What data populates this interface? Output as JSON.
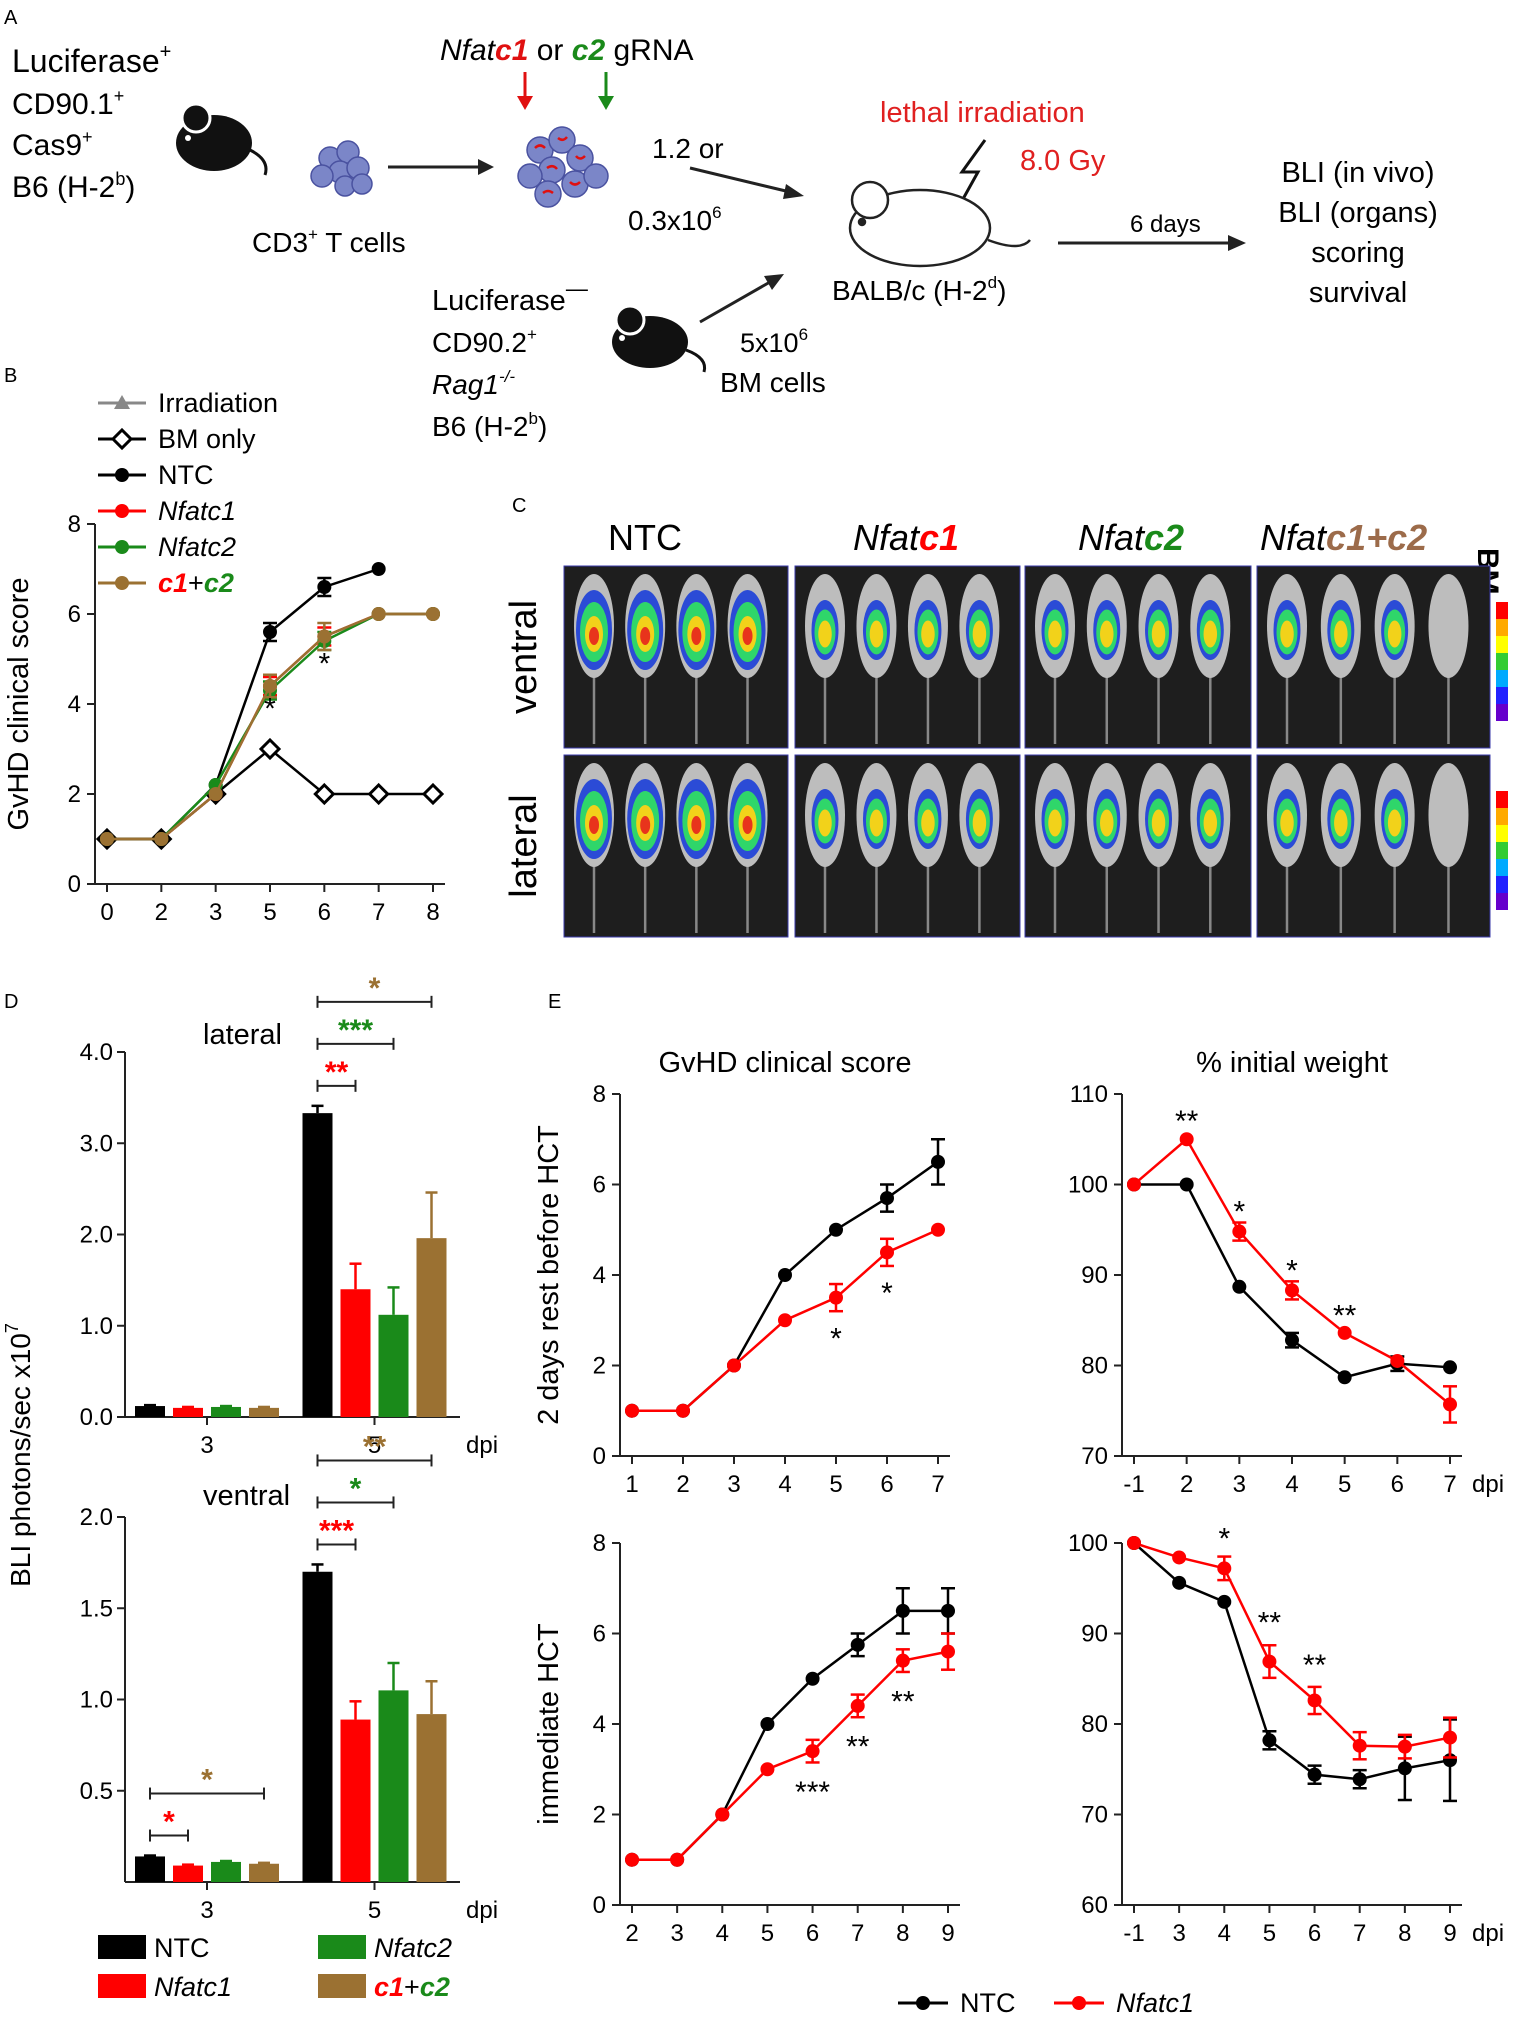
{
  "panel_letters": {
    "A": "A",
    "B": "B",
    "C": "C",
    "D": "D",
    "E": "E"
  },
  "panelA": {
    "donor_luc": "Luciferase",
    "donor_luc_sup": "+",
    "donor_line2": "CD90.1",
    "donor_line2_sup": "+",
    "donor_line3": "Cas9",
    "donor_line3_sup": "+",
    "donor_line4_a": "B6 (H-2",
    "donor_line4_sup": "b",
    "donor_line4_b": ")",
    "tcells_label": "CD3",
    "tcells_sup": "+",
    "tcells_label2": " T cells",
    "grna_a": "Nfat",
    "grna_b": "c1",
    "grna_c": " or ",
    "grna_d": "c2",
    "grna_e": " gRNA",
    "dose1": "1.2  or",
    "dose2": "0.3x10",
    "dose2_sup": "6",
    "irradiation": "lethal irradiation",
    "gy": "8.0 Gy",
    "host_a": "BALB/c (H-2",
    "host_sup": "d",
    "host_b": ")",
    "days": "6 days",
    "out1": "BLI (in vivo)",
    "out2": "BLI (organs)",
    "out3": "scoring",
    "out4": "survival",
    "bm_luc": "Luciferase",
    "bm_luc_sup": "—",
    "bm_line2": "CD90.2",
    "bm_line2_sup": "+",
    "bm_line3": "Rag1",
    "bm_line3_sup": "-/-",
    "bm_line4_a": "B6 (H-2",
    "bm_line4_sup": "b",
    "bm_line4_b": ")",
    "bm_dose": "5x10",
    "bm_dose_sup": "6",
    "bm_cells": "BM cells"
  },
  "panelC": {
    "group_headers": [
      "NTC",
      "Nfatc1",
      "Nfatc2",
      "Nfatc1+c2"
    ],
    "group_header_parts": [
      [
        "NTC",
        ""
      ],
      [
        "Nfat",
        "c1"
      ],
      [
        "Nfat",
        "c2"
      ],
      [
        "Nfat",
        "c1+c2"
      ]
    ],
    "bm_label": "BM",
    "row_labels": [
      "ventral",
      "lateral"
    ]
  },
  "colors": {
    "NTC": "#000000",
    "Nfatc1": "#ff0000",
    "Nfatc2": "#1a8a1a",
    "c1c2": "#9b7132",
    "BM": "#000000",
    "Irradiation": "#888888",
    "luciferase": "#d4a017",
    "irradiation_text": "#e02020"
  },
  "chart_data": [
    {
      "id": "B",
      "type": "line",
      "ylabel": "GvHD clinical score",
      "xlabel": "",
      "x": [
        0,
        2,
        3,
        5,
        6,
        7,
        8
      ],
      "ylim": [
        0,
        8
      ],
      "yticks": [
        0,
        2,
        4,
        6,
        8
      ],
      "legend": [
        "Irradiation",
        "BM only",
        "NTC",
        "Nfatc1",
        "Nfatc2",
        "c1+c2"
      ],
      "series": [
        {
          "name": "BM only",
          "x": [
            0,
            2,
            3,
            5,
            6,
            7,
            8
          ],
          "values": [
            1,
            1,
            2,
            3,
            2,
            2,
            2
          ],
          "err": [
            0,
            0,
            0,
            0,
            0,
            0,
            0
          ]
        },
        {
          "name": "NTC",
          "x": [
            0,
            2,
            3,
            5,
            6,
            7
          ],
          "values": [
            1,
            1,
            2.2,
            5.6,
            6.6,
            7
          ],
          "err": [
            0,
            0,
            0,
            0.2,
            0.2,
            0
          ]
        },
        {
          "name": "Nfatc1",
          "x": [
            0,
            2,
            3,
            5,
            6,
            7,
            8
          ],
          "values": [
            1,
            1,
            2,
            4.4,
            5.5,
            6,
            6
          ],
          "err": [
            0,
            0,
            0,
            0.2,
            0.2,
            0,
            0
          ]
        },
        {
          "name": "Nfatc2",
          "x": [
            0,
            2,
            3,
            5,
            6,
            7,
            8
          ],
          "values": [
            1,
            1,
            2.2,
            4.3,
            5.4,
            6,
            6
          ],
          "err": [
            0,
            0,
            0,
            0.2,
            0.2,
            0,
            0
          ]
        },
        {
          "name": "c1+c2",
          "x": [
            0,
            2,
            3,
            5,
            6,
            7,
            8
          ],
          "values": [
            1,
            1,
            2,
            4.4,
            5.5,
            6,
            6
          ],
          "err": [
            0,
            0,
            0,
            0.25,
            0.3,
            0,
            0
          ]
        }
      ],
      "annotations": [
        {
          "x": 5,
          "y": 3.9,
          "text": "*"
        },
        {
          "x": 6,
          "y": 4.9,
          "text": "*"
        }
      ]
    },
    {
      "id": "D-lateral",
      "type": "bar",
      "title": "lateral",
      "categories": [
        "3",
        "5"
      ],
      "xunit": "dpi",
      "ylim": [
        0,
        4
      ],
      "yticks": [
        "0.0",
        "1.0",
        "2.0",
        "3.0",
        "4.0"
      ],
      "series": [
        {
          "name": "NTC",
          "values": [
            0.12,
            3.33
          ],
          "err": [
            0.01,
            0.08
          ]
        },
        {
          "name": "Nfatc1",
          "values": [
            0.1,
            1.4
          ],
          "err": [
            0.01,
            0.28
          ]
        },
        {
          "name": "Nfatc2",
          "values": [
            0.11,
            1.12
          ],
          "err": [
            0.01,
            0.3
          ]
        },
        {
          "name": "c1+c2",
          "values": [
            0.1,
            1.96
          ],
          "err": [
            0.01,
            0.5
          ]
        }
      ],
      "significance": [
        {
          "group": 1,
          "from": 0,
          "to": 1,
          "text": "**",
          "color": "Nfatc1"
        },
        {
          "group": 1,
          "from": 0,
          "to": 2,
          "text": "***",
          "color": "Nfatc2"
        },
        {
          "group": 1,
          "from": 0,
          "to": 3,
          "text": "*",
          "color": "c1c2"
        }
      ]
    },
    {
      "id": "D-ventral",
      "type": "bar",
      "title": "ventral",
      "categories": [
        "3",
        "5"
      ],
      "xunit": "dpi",
      "ylim": [
        0,
        2
      ],
      "yticks": [
        "0.5",
        "1.0",
        "1.5",
        "2.0"
      ],
      "ylabel": "BLI photons/sec x10",
      "ylabel_sup": "7",
      "series": [
        {
          "name": "NTC",
          "values": [
            0.14,
            1.7
          ],
          "err": [
            0.005,
            0.04
          ]
        },
        {
          "name": "Nfatc1",
          "values": [
            0.09,
            0.89
          ],
          "err": [
            0.005,
            0.1
          ]
        },
        {
          "name": "Nfatc2",
          "values": [
            0.11,
            1.05
          ],
          "err": [
            0.005,
            0.15
          ]
        },
        {
          "name": "c1+c2",
          "values": [
            0.1,
            0.92
          ],
          "err": [
            0.005,
            0.18
          ]
        }
      ],
      "significance": [
        {
          "group": 0,
          "from": 0,
          "to": 1,
          "text": "*",
          "color": "Nfatc1"
        },
        {
          "group": 0,
          "from": 0,
          "to": 3,
          "text": "*",
          "color": "c1c2"
        },
        {
          "group": 1,
          "from": 0,
          "to": 1,
          "text": "***",
          "color": "Nfatc1"
        },
        {
          "group": 1,
          "from": 0,
          "to": 2,
          "text": "*",
          "color": "Nfatc2"
        },
        {
          "group": 1,
          "from": 0,
          "to": 3,
          "text": "**",
          "color": "c1c2"
        }
      ],
      "legend": [
        "NTC",
        "Nfatc2",
        "Nfatc1",
        "c1+c2"
      ]
    },
    {
      "id": "E-top-left",
      "type": "line",
      "title": "GvHD clinical score",
      "ylabel": "2 days rest before HCT",
      "x": [
        1,
        2,
        3,
        4,
        5,
        6,
        7
      ],
      "ylim": [
        0,
        8
      ],
      "yticks": [
        0,
        2,
        4,
        6,
        8
      ],
      "series": [
        {
          "name": "NTC",
          "x": [
            1,
            2,
            3,
            4,
            5,
            6,
            7
          ],
          "values": [
            1,
            1,
            2,
            4,
            5,
            5.7,
            6.5
          ],
          "err": [
            0,
            0,
            0,
            0,
            0,
            0.3,
            0.5
          ]
        },
        {
          "name": "Nfatc1",
          "x": [
            1,
            2,
            3,
            4,
            5,
            6,
            7
          ],
          "values": [
            1,
            1,
            2,
            3,
            3.5,
            4.5,
            5
          ],
          "err": [
            0,
            0,
            0,
            0,
            0.3,
            0.3,
            0
          ]
        }
      ],
      "annotations": [
        {
          "x": 5,
          "y": 2.6,
          "text": "*"
        },
        {
          "x": 6,
          "y": 3.6,
          "text": "*"
        }
      ]
    },
    {
      "id": "E-top-right",
      "type": "line",
      "title": "% initial weight",
      "x": [
        -1,
        2,
        3,
        4,
        5,
        6,
        7
      ],
      "xunit": "dpi",
      "ylim": [
        70,
        110
      ],
      "yticks": [
        70,
        80,
        90,
        100,
        110
      ],
      "series": [
        {
          "name": "NTC",
          "x": [
            -1,
            2,
            3,
            4,
            5,
            6,
            7
          ],
          "values": [
            100,
            100,
            88.7,
            82.8,
            78.7,
            80.2,
            79.8
          ],
          "err": [
            0,
            0,
            0,
            0.8,
            0,
            0.8,
            0
          ]
        },
        {
          "name": "Nfatc1",
          "x": [
            -1,
            2,
            3,
            4,
            5,
            6,
            7
          ],
          "values": [
            100,
            105,
            94.8,
            88.3,
            83.6,
            80.5,
            75.7
          ],
          "err": [
            0,
            0,
            1,
            1,
            0,
            0,
            2
          ]
        }
      ],
      "annotations": [
        {
          "x": 2,
          "y": 107,
          "text": "**"
        },
        {
          "x": 3,
          "y": 97,
          "text": "*"
        },
        {
          "x": 4,
          "y": 90.5,
          "text": "*"
        },
        {
          "x": 5,
          "y": 85.5,
          "text": "**"
        }
      ]
    },
    {
      "id": "E-bottom-left",
      "type": "line",
      "ylabel": "immediate HCT",
      "x": [
        2,
        3,
        4,
        5,
        6,
        7,
        8,
        9
      ],
      "ylim": [
        0,
        8
      ],
      "yticks": [
        0,
        2,
        4,
        6,
        8
      ],
      "series": [
        {
          "name": "NTC",
          "x": [
            2,
            3,
            4,
            5,
            6,
            7,
            8,
            9
          ],
          "values": [
            1,
            1,
            2,
            4,
            5,
            5.75,
            6.5,
            6.5
          ],
          "err": [
            0,
            0,
            0,
            0,
            0,
            0.25,
            0.5,
            0.5
          ]
        },
        {
          "name": "Nfatc1",
          "x": [
            2,
            3,
            4,
            5,
            6,
            7,
            8,
            9
          ],
          "values": [
            1,
            1,
            2,
            3,
            3.4,
            4.4,
            5.4,
            5.6
          ],
          "err": [
            0,
            0,
            0,
            0,
            0.25,
            0.25,
            0.25,
            0.4
          ]
        }
      ],
      "annotations": [
        {
          "x": 6,
          "y": 2.5,
          "text": "***"
        },
        {
          "x": 7,
          "y": 3.5,
          "text": "**"
        },
        {
          "x": 8,
          "y": 4.5,
          "text": "**"
        }
      ]
    },
    {
      "id": "E-bottom-right",
      "type": "line",
      "x": [
        -1,
        3,
        4,
        5,
        6,
        7,
        8,
        9
      ],
      "xunit": "dpi",
      "ylim": [
        60,
        100
      ],
      "yticks": [
        60,
        70,
        80,
        90,
        100
      ],
      "series": [
        {
          "name": "NTC",
          "x": [
            -1,
            3,
            4,
            5,
            6,
            7,
            8,
            9
          ],
          "values": [
            100,
            95.6,
            93.5,
            78.2,
            74.4,
            73.9,
            75.1,
            76
          ],
          "err": [
            0,
            0,
            0,
            1,
            1,
            1,
            3.5,
            4.5
          ]
        },
        {
          "name": "Nfatc1",
          "x": [
            -1,
            3,
            4,
            5,
            6,
            7,
            8,
            9
          ],
          "values": [
            100,
            98.4,
            97.2,
            86.9,
            82.6,
            77.6,
            77.5,
            78.5
          ],
          "err": [
            0,
            0,
            1.3,
            1.8,
            1.5,
            1.5,
            1.3,
            2.2
          ]
        }
      ],
      "annotations": [
        {
          "x": 4,
          "y": 100.5,
          "text": "*"
        },
        {
          "x": 5,
          "y": 91.2,
          "text": "**"
        },
        {
          "x": 6,
          "y": 86.5,
          "text": "**"
        }
      ],
      "legend": [
        "NTC",
        "Nfatc1"
      ]
    }
  ]
}
